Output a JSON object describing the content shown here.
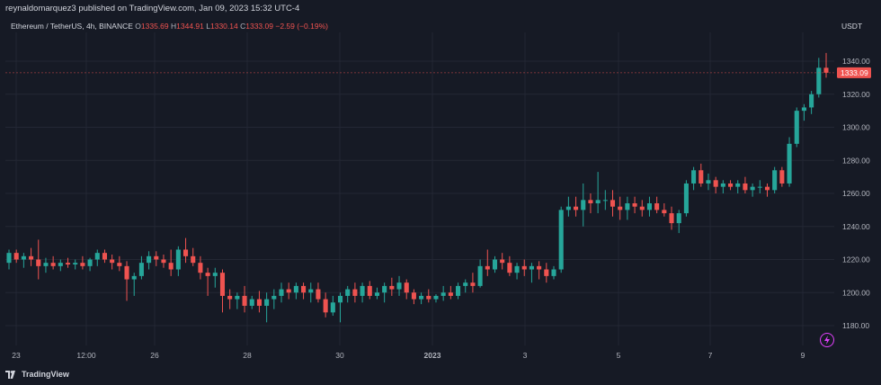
{
  "header": {
    "publisher_line": "reynaldomarquez3 published on TradingView.com, Jan 09, 2023 15:32 UTC-4"
  },
  "legend": {
    "symbol": "Ethereum / TetherUS, 4h, BINANCE",
    "o_label": "O",
    "o_value": "1335.69",
    "h_label": "H",
    "h_value": "1344.91",
    "l_label": "L",
    "l_value": "1330.14",
    "c_label": "C",
    "c_value": "1333.09",
    "change": "−2.59 (−0.19%)"
  },
  "price_axis": {
    "unit": "USDT",
    "ticks": [
      "1340.00",
      "1320.00",
      "1300.00",
      "1280.00",
      "1260.00",
      "1240.00",
      "1220.00",
      "1200.00",
      "1180.00"
    ],
    "last_price_label": "1333.09"
  },
  "time_axis": {
    "ticks": [
      "23",
      "12:00",
      "26",
      "28",
      "30",
      "2023",
      "3",
      "5",
      "7",
      "9"
    ]
  },
  "footer": {
    "brand": "TradingView"
  },
  "icons": {
    "brand_logo": "tradingview-logo-icon",
    "lightning": "lightning-icon"
  },
  "colors": {
    "up": "#26a69a",
    "down": "#ef5350",
    "background": "#161a25",
    "grid": "#232734",
    "text": "#d1d4dc",
    "alert": "#e040fb"
  },
  "chart_data": {
    "type": "candlestick",
    "timeframe": "4h",
    "ylim": [
      1170,
      1348
    ],
    "candles": [
      [
        1218,
        1226,
        1214,
        1224
      ],
      [
        1224,
        1226,
        1218,
        1220
      ],
      [
        1220,
        1224,
        1215,
        1222
      ],
      [
        1222,
        1227,
        1216,
        1220
      ],
      [
        1220,
        1232,
        1208,
        1216
      ],
      [
        1216,
        1221,
        1212,
        1218
      ],
      [
        1218,
        1222,
        1214,
        1216
      ],
      [
        1216,
        1220,
        1213,
        1218
      ],
      [
        1218,
        1221,
        1215,
        1217
      ],
      [
        1217,
        1220,
        1214,
        1218
      ],
      [
        1218,
        1222,
        1214,
        1216
      ],
      [
        1216,
        1221,
        1213,
        1220
      ],
      [
        1220,
        1226,
        1216,
        1224
      ],
      [
        1224,
        1226,
        1218,
        1220
      ],
      [
        1220,
        1223,
        1214,
        1218
      ],
      [
        1218,
        1222,
        1213,
        1216
      ],
      [
        1216,
        1219,
        1195,
        1208
      ],
      [
        1208,
        1212,
        1198,
        1210
      ],
      [
        1210,
        1222,
        1208,
        1218
      ],
      [
        1218,
        1225,
        1214,
        1222
      ],
      [
        1222,
        1225,
        1216,
        1220
      ],
      [
        1220,
        1223,
        1215,
        1218
      ],
      [
        1218,
        1226,
        1210,
        1214
      ],
      [
        1214,
        1228,
        1210,
        1226
      ],
      [
        1226,
        1233,
        1218,
        1222
      ],
      [
        1222,
        1227,
        1216,
        1218
      ],
      [
        1218,
        1222,
        1208,
        1212
      ],
      [
        1212,
        1215,
        1198,
        1210
      ],
      [
        1210,
        1215,
        1203,
        1212
      ],
      [
        1212,
        1214,
        1188,
        1198
      ],
      [
        1198,
        1202,
        1190,
        1196
      ],
      [
        1196,
        1200,
        1190,
        1198
      ],
      [
        1198,
        1204,
        1188,
        1192
      ],
      [
        1192,
        1198,
        1190,
        1196
      ],
      [
        1196,
        1201,
        1188,
        1192
      ],
      [
        1192,
        1200,
        1182,
        1196
      ],
      [
        1196,
        1202,
        1190,
        1198
      ],
      [
        1198,
        1206,
        1194,
        1202
      ],
      [
        1202,
        1206,
        1196,
        1200
      ],
      [
        1200,
        1206,
        1196,
        1204
      ],
      [
        1204,
        1206,
        1196,
        1200
      ],
      [
        1200,
        1206,
        1194,
        1202
      ],
      [
        1202,
        1206,
        1194,
        1196
      ],
      [
        1196,
        1200,
        1185,
        1188
      ],
      [
        1188,
        1198,
        1186,
        1194
      ],
      [
        1194,
        1200,
        1182,
        1198
      ],
      [
        1198,
        1204,
        1194,
        1202
      ],
      [
        1202,
        1206,
        1194,
        1198
      ],
      [
        1198,
        1206,
        1194,
        1204
      ],
      [
        1204,
        1207,
        1196,
        1198
      ],
      [
        1198,
        1203,
        1196,
        1200
      ],
      [
        1200,
        1206,
        1194,
        1204
      ],
      [
        1204,
        1209,
        1198,
        1202
      ],
      [
        1202,
        1210,
        1198,
        1206
      ],
      [
        1206,
        1208,
        1196,
        1200
      ],
      [
        1200,
        1202,
        1193,
        1196
      ],
      [
        1196,
        1200,
        1193,
        1198
      ],
      [
        1198,
        1202,
        1194,
        1196
      ],
      [
        1196,
        1199,
        1194,
        1198
      ],
      [
        1198,
        1204,
        1195,
        1200
      ],
      [
        1200,
        1204,
        1196,
        1198
      ],
      [
        1198,
        1206,
        1196,
        1204
      ],
      [
        1204,
        1208,
        1200,
        1206
      ],
      [
        1206,
        1212,
        1200,
        1204
      ],
      [
        1204,
        1220,
        1203,
        1216
      ],
      [
        1216,
        1226,
        1210,
        1214
      ],
      [
        1214,
        1222,
        1212,
        1220
      ],
      [
        1220,
        1224,
        1214,
        1218
      ],
      [
        1218,
        1222,
        1210,
        1212
      ],
      [
        1212,
        1218,
        1208,
        1216
      ],
      [
        1216,
        1220,
        1210,
        1214
      ],
      [
        1214,
        1218,
        1206,
        1216
      ],
      [
        1216,
        1219,
        1208,
        1214
      ],
      [
        1214,
        1218,
        1206,
        1210
      ],
      [
        1210,
        1216,
        1208,
        1214
      ],
      [
        1214,
        1252,
        1212,
        1250
      ],
      [
        1250,
        1258,
        1246,
        1252
      ],
      [
        1252,
        1258,
        1246,
        1250
      ],
      [
        1250,
        1266,
        1240,
        1256
      ],
      [
        1256,
        1260,
        1248,
        1254
      ],
      [
        1254,
        1273,
        1248,
        1256
      ],
      [
        1256,
        1262,
        1250,
        1256
      ],
      [
        1256,
        1262,
        1246,
        1252
      ],
      [
        1252,
        1258,
        1244,
        1250
      ],
      [
        1250,
        1258,
        1244,
        1254
      ],
      [
        1254,
        1258,
        1248,
        1252
      ],
      [
        1252,
        1256,
        1246,
        1250
      ],
      [
        1250,
        1258,
        1246,
        1254
      ],
      [
        1254,
        1258,
        1248,
        1250
      ],
      [
        1250,
        1254,
        1246,
        1248
      ],
      [
        1248,
        1252,
        1238,
        1242
      ],
      [
        1242,
        1250,
        1236,
        1248
      ],
      [
        1248,
        1268,
        1246,
        1266
      ],
      [
        1266,
        1276,
        1262,
        1274
      ],
      [
        1274,
        1278,
        1264,
        1266
      ],
      [
        1266,
        1272,
        1262,
        1268
      ],
      [
        1268,
        1270,
        1260,
        1264
      ],
      [
        1264,
        1268,
        1260,
        1266
      ],
      [
        1266,
        1268,
        1262,
        1264
      ],
      [
        1264,
        1268,
        1260,
        1266
      ],
      [
        1266,
        1270,
        1260,
        1262
      ],
      [
        1262,
        1266,
        1258,
        1264
      ],
      [
        1264,
        1268,
        1260,
        1264
      ],
      [
        1264,
        1266,
        1258,
        1262
      ],
      [
        1262,
        1276,
        1260,
        1274
      ],
      [
        1274,
        1276,
        1264,
        1266
      ],
      [
        1266,
        1294,
        1264,
        1290
      ],
      [
        1290,
        1312,
        1288,
        1310
      ],
      [
        1310,
        1314,
        1304,
        1312
      ],
      [
        1312,
        1322,
        1308,
        1320
      ],
      [
        1320,
        1342,
        1318,
        1336
      ],
      [
        1336,
        1345,
        1330,
        1333
      ]
    ]
  }
}
